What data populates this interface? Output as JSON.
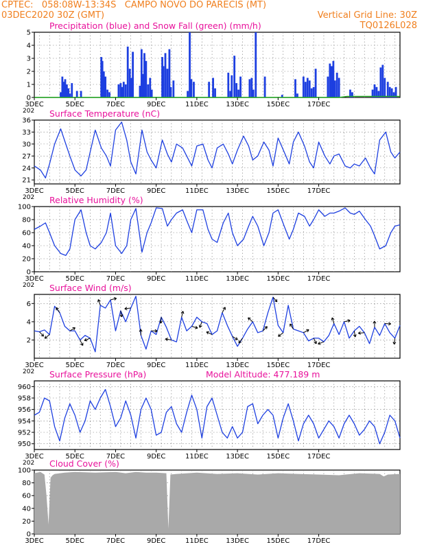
{
  "header": {
    "line1": "CPTEC:   058:08W-13:34S   CAMPO NOVO DO PARECIS (MT)",
    "line2_left": "03DEC2020 30Z (GMT)",
    "line2_right": "Vertical Grid Line: 30Z",
    "line3_right": "TQ0126L028"
  },
  "colors": {
    "header": "#f07f1e",
    "title": "#e8119b",
    "series": "#1d3fe0",
    "snow": "#1ea81e",
    "wind_arrow": "#000000",
    "cloud": "#a9a9a9"
  },
  "x_axis": {
    "tick_labels": [
      "3DEC",
      "5DEC",
      "7DEC",
      "9DEC",
      "11DEC",
      "13DEC",
      "15DEC",
      "17DEC"
    ],
    "first_tick_prefix": "202"
  },
  "chart_data": [
    {
      "type": "bar",
      "title": "Precipitation (blue) and Snow Fall (green) (mm/h)",
      "ylim": [
        0,
        5
      ],
      "yticks": [
        "0",
        "1",
        "2",
        "3",
        "4",
        "5"
      ],
      "series": [
        {
          "name": "Precipitation",
          "x": [
            1.3,
            1.38,
            1.45,
            1.52,
            1.6,
            1.68,
            1.75,
            1.85,
            2.1,
            2.3,
            3.3,
            3.35,
            3.42,
            3.5,
            3.6,
            3.7,
            4.15,
            4.25,
            4.32,
            4.4,
            4.5,
            4.6,
            4.7,
            4.78,
            4.85,
            5.2,
            5.28,
            5.35,
            5.42,
            5.5,
            5.6,
            5.7,
            5.78,
            6.3,
            6.35,
            6.45,
            6.55,
            6.65,
            6.72,
            6.85,
            7.55,
            7.65,
            7.73,
            7.85,
            8.6,
            8.8,
            8.9,
            9.55,
            9.65,
            9.72,
            9.85,
            9.95,
            10.05,
            10.15,
            10.6,
            10.7,
            10.78,
            10.9,
            11.35,
            12.2,
            12.85,
            12.95,
            13.25,
            13.35,
            13.45,
            13.55,
            13.65,
            13.75,
            13.85,
            14.45,
            14.55,
            14.63,
            14.72,
            14.8,
            14.9,
            15.0,
            15.55,
            15.65,
            16.65,
            16.75,
            16.85,
            16.95,
            17.05,
            17.15,
            17.25,
            17.4,
            17.5,
            17.6,
            17.7,
            17.8
          ],
          "values": [
            0.4,
            1.6,
            1.2,
            1.4,
            1.0,
            0.7,
            0.3,
            1.1,
            0.5,
            0.5,
            3.1,
            2.8,
            2.0,
            1.6,
            0.6,
            0.4,
            1.0,
            1.1,
            0.8,
            1.2,
            1.0,
            3.9,
            2.2,
            1.5,
            3.5,
            0.9,
            3.7,
            1.8,
            3.4,
            2.8,
            1.0,
            1.5,
            0.6,
            3.1,
            2.4,
            3.4,
            2.2,
            3.7,
            0.8,
            1.3,
            0.5,
            5.0,
            1.4,
            1.2,
            1.2,
            1.5,
            0.7,
            1.9,
            0.5,
            1.7,
            3.2,
            1.1,
            0.6,
            1.6,
            1.4,
            1.5,
            0.6,
            5.0,
            1.6,
            0.2,
            1.4,
            0.3,
            1.6,
            1.2,
            1.5,
            1.3,
            0.7,
            0.8,
            2.2,
            1.6,
            2.6,
            2.4,
            2.8,
            1.3,
            1.9,
            1.5,
            0.6,
            0.4,
            0.6,
            1.0,
            0.8,
            0.5,
            2.3,
            2.5,
            1.5,
            1.2,
            0.8,
            0.7,
            0.4,
            0.8
          ]
        },
        {
          "name": "Snow Fall",
          "x": [
            0,
            15.0,
            15.4,
            18.0
          ],
          "values": [
            0,
            0,
            0.08,
            0.08
          ]
        }
      ]
    },
    {
      "type": "line",
      "title": "Surface Temperature (nC)",
      "ylim": [
        20,
        36
      ],
      "yticks": [
        "21",
        "24",
        "27",
        "30",
        "33",
        "36"
      ],
      "series": [
        {
          "name": "",
          "x": [
            0,
            0.3,
            0.55,
            0.75,
            1.0,
            1.3,
            1.55,
            1.75,
            2.0,
            2.3,
            2.55,
            2.75,
            3.0,
            3.3,
            3.55,
            3.75,
            4.0,
            4.3,
            4.55,
            4.75,
            5.0,
            5.3,
            5.55,
            5.75,
            6.0,
            6.3,
            6.55,
            6.75,
            7.0,
            7.3,
            7.55,
            7.75,
            8.0,
            8.3,
            8.55,
            8.75,
            9.0,
            9.3,
            9.55,
            9.75,
            10.0,
            10.3,
            10.55,
            10.75,
            11.0,
            11.3,
            11.55,
            11.75,
            12.0,
            12.3,
            12.55,
            12.75,
            13.0,
            13.3,
            13.55,
            13.75,
            14.0,
            14.3,
            14.55,
            14.75,
            15.0,
            15.3,
            15.55,
            15.75,
            16.0,
            16.3,
            16.55,
            16.75,
            17.0,
            17.3,
            17.55,
            17.75,
            18.0
          ],
          "values": [
            24.5,
            23.5,
            21.5,
            25.0,
            30.0,
            33.8,
            30.0,
            27.0,
            23.5,
            22.0,
            23.5,
            28.0,
            33.5,
            29.0,
            27.0,
            24.5,
            33.5,
            35.5,
            31.0,
            25.5,
            22.5,
            33.5,
            28.0,
            26.0,
            24.0,
            31.0,
            27.5,
            25.5,
            30.0,
            29.0,
            26.5,
            24.5,
            29.5,
            30.0,
            26.0,
            24.0,
            29.0,
            30.0,
            27.5,
            25.0,
            28.5,
            32.0,
            29.5,
            26.0,
            27.0,
            30.5,
            28.5,
            24.5,
            31.5,
            28.0,
            25.0,
            30.5,
            33.0,
            29.5,
            25.5,
            24.0,
            30.5,
            27.0,
            25.0,
            27.0,
            27.5,
            24.5,
            24.0,
            25.0,
            24.5,
            26.5,
            24.0,
            22.5,
            31.0,
            33.0,
            28.0,
            26.5,
            28.0
          ]
        }
      ]
    },
    {
      "type": "line",
      "title": "Relative Humidity (%)",
      "ylim": [
        0,
        100
      ],
      "yticks": [
        "0",
        "20",
        "40",
        "60",
        "80",
        "100"
      ],
      "series": [
        {
          "name": "",
          "x": [
            0,
            0.3,
            0.55,
            0.75,
            1.0,
            1.3,
            1.55,
            1.75,
            2.0,
            2.3,
            2.55,
            2.75,
            3.0,
            3.3,
            3.55,
            3.75,
            4.0,
            4.3,
            4.55,
            4.75,
            5.0,
            5.3,
            5.55,
            5.75,
            6.0,
            6.3,
            6.55,
            6.75,
            7.0,
            7.3,
            7.55,
            7.75,
            8.0,
            8.3,
            8.55,
            8.75,
            9.0,
            9.3,
            9.55,
            9.75,
            10.0,
            10.3,
            10.55,
            10.75,
            11.0,
            11.3,
            11.55,
            11.75,
            12.0,
            12.3,
            12.55,
            12.75,
            13.0,
            13.3,
            13.55,
            13.75,
            14.0,
            14.3,
            14.55,
            14.75,
            15.0,
            15.3,
            15.55,
            15.75,
            16.0,
            16.3,
            16.55,
            16.75,
            17.0,
            17.3,
            17.55,
            17.75,
            18.0
          ],
          "values": [
            65,
            70,
            75,
            60,
            40,
            28,
            25,
            35,
            80,
            95,
            60,
            40,
            35,
            45,
            60,
            90,
            40,
            28,
            40,
            80,
            97,
            30,
            60,
            75,
            98,
            97,
            70,
            80,
            90,
            95,
            75,
            60,
            95,
            95,
            65,
            50,
            45,
            75,
            90,
            60,
            40,
            50,
            70,
            85,
            70,
            40,
            60,
            90,
            95,
            70,
            50,
            65,
            90,
            85,
            70,
            80,
            95,
            85,
            90,
            90,
            93,
            98,
            90,
            88,
            93,
            80,
            70,
            55,
            35,
            40,
            60,
            70,
            72
          ]
        }
      ]
    },
    {
      "type": "line",
      "title": "Surface Wind (m/s)",
      "ylim": [
        0,
        7
      ],
      "yticks": [
        "2",
        "4",
        "6"
      ],
      "series": [
        {
          "name": "",
          "x": [
            0,
            0.25,
            0.5,
            0.75,
            1.0,
            1.25,
            1.5,
            1.75,
            2.0,
            2.25,
            2.5,
            2.75,
            3.0,
            3.25,
            3.5,
            3.75,
            4.0,
            4.25,
            4.5,
            4.75,
            5.0,
            5.25,
            5.5,
            5.75,
            6.0,
            6.25,
            6.5,
            6.75,
            7.0,
            7.25,
            7.5,
            7.75,
            8.0,
            8.25,
            8.5,
            8.75,
            9.0,
            9.25,
            9.5,
            9.75,
            10.0,
            10.25,
            10.5,
            10.75,
            11.0,
            11.25,
            11.5,
            11.75,
            12.0,
            12.25,
            12.5,
            12.75,
            13.0,
            13.25,
            13.5,
            13.75,
            14.0,
            14.25,
            14.5,
            14.75,
            15.0,
            15.25,
            15.5,
            15.75,
            16.0,
            16.25,
            16.5,
            16.75,
            17.0,
            17.25,
            17.5,
            17.75,
            18.0
          ],
          "values": [
            3.0,
            2.9,
            3.1,
            2.6,
            5.7,
            5.0,
            3.5,
            3.0,
            3.0,
            2.0,
            2.5,
            2.2,
            0.7,
            5.8,
            5.5,
            6.4,
            3.0,
            5.2,
            4.0,
            5.5,
            6.8,
            2.5,
            1.0,
            3.0,
            2.6,
            4.5,
            3.4,
            2.0,
            1.8,
            4.5,
            3.0,
            3.5,
            4.5,
            4.0,
            3.8,
            2.6,
            3.0,
            5.0,
            3.6,
            2.4,
            1.3,
            2.2,
            3.2,
            4.0,
            2.8,
            3.0,
            5.0,
            6.7,
            3.6,
            2.8,
            5.8,
            3.2,
            3.0,
            2.8,
            1.9,
            2.2,
            2.2,
            1.8,
            2.5,
            3.8,
            2.6,
            4.0,
            2.2,
            3.0,
            3.5,
            2.8,
            1.6,
            3.4,
            2.5,
            3.8,
            2.8,
            2.2,
            3.6
          ]
        }
      ]
    },
    {
      "type": "line",
      "title": "Surface Pressure (hPa)",
      "annotation": "Model Altitude: 477.189  m",
      "ylim": [
        949,
        961
      ],
      "yticks": [
        "950",
        "952",
        "954",
        "956",
        "958",
        "960"
      ],
      "series": [
        {
          "name": "",
          "x": [
            0,
            0.25,
            0.5,
            0.75,
            1.0,
            1.25,
            1.5,
            1.75,
            2.0,
            2.25,
            2.5,
            2.75,
            3.0,
            3.25,
            3.5,
            3.75,
            4.0,
            4.25,
            4.5,
            4.75,
            5.0,
            5.25,
            5.5,
            5.75,
            6.0,
            6.25,
            6.5,
            6.75,
            7.0,
            7.25,
            7.5,
            7.75,
            8.0,
            8.25,
            8.5,
            8.75,
            9.0,
            9.25,
            9.5,
            9.75,
            10.0,
            10.25,
            10.5,
            10.75,
            11.0,
            11.25,
            11.5,
            11.75,
            12.0,
            12.25,
            12.5,
            12.75,
            13.0,
            13.25,
            13.5,
            13.75,
            14.0,
            14.25,
            14.5,
            14.75,
            15.0,
            15.25,
            15.5,
            15.75,
            16.0,
            16.25,
            16.5,
            16.75,
            17.0,
            17.25,
            17.5,
            17.75,
            18.0
          ],
          "values": [
            955.0,
            955.5,
            958.0,
            957.5,
            953.0,
            950.5,
            954.5,
            957.0,
            955.0,
            952.0,
            954.0,
            957.5,
            956.0,
            958.0,
            959.5,
            956.5,
            953.0,
            954.5,
            957.5,
            955.0,
            951.0,
            956.0,
            958.0,
            956.0,
            951.5,
            952.0,
            955.5,
            956.5,
            953.5,
            952.0,
            955.5,
            958.5,
            956.0,
            951.0,
            956.5,
            958.0,
            955.0,
            952.0,
            951.0,
            953.0,
            951.0,
            952.0,
            956.5,
            957.0,
            953.5,
            955.0,
            956.0,
            955.0,
            951.0,
            954.5,
            957.0,
            954.0,
            950.5,
            953.5,
            955.0,
            953.5,
            951.0,
            952.5,
            954.0,
            953.0,
            951.0,
            953.5,
            955.0,
            953.5,
            951.5,
            952.5,
            954.0,
            953.0,
            950.0,
            952.0,
            955.0,
            954.0,
            951.0
          ]
        }
      ]
    },
    {
      "type": "area",
      "title": "Cloud Cover (%)",
      "ylim": [
        0,
        100
      ],
      "yticks": [
        "0",
        "20",
        "40",
        "60",
        "80",
        "100"
      ],
      "series": [
        {
          "name": "",
          "x": [
            0,
            0.3,
            0.5,
            0.6,
            0.7,
            0.8,
            0.9,
            1.0,
            1.5,
            2.0,
            3.0,
            4.0,
            4.5,
            5.0,
            5.5,
            6.0,
            6.5,
            6.6,
            6.7,
            7.0,
            8.0,
            9.0,
            10.0,
            11.0,
            12.0,
            13.0,
            14.0,
            15.0,
            16.0,
            17.0,
            17.2,
            17.4,
            18.0
          ],
          "values": [
            95,
            97,
            93,
            60,
            15,
            88,
            92,
            94,
            96,
            97,
            96,
            97,
            95,
            97,
            96,
            96,
            95,
            8,
            93,
            94,
            96,
            94,
            95,
            93,
            95,
            94,
            93,
            92,
            95,
            94,
            90,
            93,
            94
          ]
        }
      ]
    }
  ]
}
